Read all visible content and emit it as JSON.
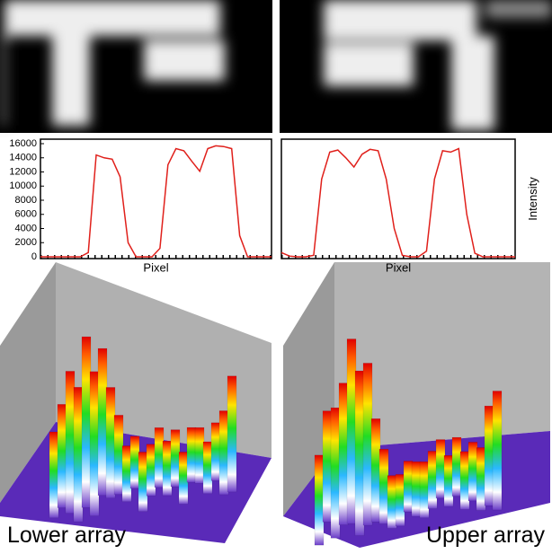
{
  "chart_data": [
    {
      "type": "line",
      "xlabel": "Pixel",
      "color": "#e0201b",
      "ylim": [
        0,
        16000
      ],
      "yticks": [
        0,
        2000,
        4000,
        6000,
        8000,
        10000,
        12000,
        14000,
        16000
      ],
      "values": [
        0,
        0,
        0,
        0,
        0,
        0,
        600,
        14400,
        14000,
        13800,
        11300,
        2000,
        0,
        0,
        0,
        1200,
        13000,
        15300,
        15000,
        13500,
        12100,
        15300,
        15700,
        15600,
        15300,
        3000,
        0,
        0,
        0,
        0
      ]
    },
    {
      "type": "line",
      "xlabel": "Pixel",
      "ylabel": "Intensity",
      "color": "#e0201b",
      "ylim": [
        0,
        16000
      ],
      "values": [
        600,
        100,
        0,
        0,
        200,
        11000,
        14800,
        15100,
        14000,
        12700,
        14500,
        15200,
        15000,
        11000,
        4000,
        200,
        0,
        0,
        800,
        11000,
        15000,
        14800,
        15300,
        6000,
        500,
        0,
        0,
        0,
        0,
        0
      ]
    }
  ],
  "panels": {
    "lower_label": "Lower array",
    "upper_label": "Upper array"
  }
}
